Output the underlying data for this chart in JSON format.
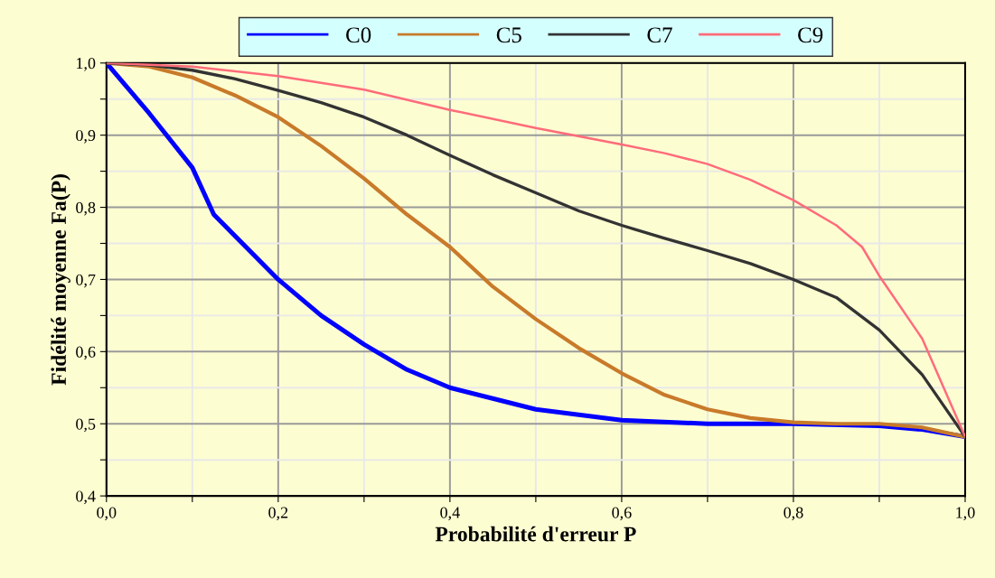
{
  "chart_data": {
    "type": "line",
    "xlabel": "Probabilité d'erreur P",
    "ylabel": "Fidélité moyenne Fa(P)",
    "xlim": [
      0,
      1
    ],
    "ylim": [
      0.4,
      1.0
    ],
    "xticks": [
      {
        "value": 0,
        "label": "0,0"
      },
      {
        "value": 0.1,
        "label": null
      },
      {
        "value": 0.2,
        "label": "0,2"
      },
      {
        "value": 0.3,
        "label": null
      },
      {
        "value": 0.4,
        "label": "0,4"
      },
      {
        "value": 0.5,
        "label": null
      },
      {
        "value": 0.6,
        "label": "0,6"
      },
      {
        "value": 0.7,
        "label": null
      },
      {
        "value": 0.8,
        "label": "0,8"
      },
      {
        "value": 0.9,
        "label": null
      },
      {
        "value": 1.0,
        "label": "1,0"
      }
    ],
    "yticks": [
      {
        "value": 0.4,
        "label": "0,4"
      },
      {
        "value": 0.45,
        "label": null
      },
      {
        "value": 0.5,
        "label": "0,5"
      },
      {
        "value": 0.55,
        "label": null
      },
      {
        "value": 0.6,
        "label": "0,6"
      },
      {
        "value": 0.65,
        "label": null
      },
      {
        "value": 0.7,
        "label": "0,7"
      },
      {
        "value": 0.75,
        "label": null
      },
      {
        "value": 0.8,
        "label": "0,8"
      },
      {
        "value": 0.85,
        "label": null
      },
      {
        "value": 0.9,
        "label": "0,9"
      },
      {
        "value": 0.95,
        "label": null
      },
      {
        "value": 1.0,
        "label": "1,0"
      }
    ],
    "grid": true,
    "legend": "top",
    "marker": "none",
    "line_style": "solid",
    "series": [
      {
        "name": "C0",
        "color": "#0000ff",
        "x": [
          0,
          0.05,
          0.1,
          0.125,
          0.2,
          0.25,
          0.3,
          0.35,
          0.4,
          0.5,
          0.6,
          0.7,
          0.8,
          0.9,
          0.95,
          1.0
        ],
        "values": [
          1.0,
          0.93,
          0.855,
          0.79,
          0.7,
          0.65,
          0.61,
          0.575,
          0.55,
          0.52,
          0.505,
          0.5,
          0.5,
          0.497,
          0.492,
          0.482
        ]
      },
      {
        "name": "C5",
        "color": "#c87a2a",
        "x": [
          0,
          0.05,
          0.1,
          0.15,
          0.2,
          0.25,
          0.3,
          0.35,
          0.4,
          0.45,
          0.5,
          0.55,
          0.6,
          0.65,
          0.7,
          0.75,
          0.8,
          0.85,
          0.9,
          0.95,
          1.0
        ],
        "values": [
          1.0,
          0.995,
          0.98,
          0.955,
          0.925,
          0.885,
          0.84,
          0.79,
          0.745,
          0.69,
          0.645,
          0.605,
          0.57,
          0.54,
          0.52,
          0.508,
          0.502,
          0.5,
          0.5,
          0.495,
          0.482
        ]
      },
      {
        "name": "C7",
        "color": "#333333",
        "x": [
          0,
          0.05,
          0.1,
          0.15,
          0.2,
          0.25,
          0.3,
          0.35,
          0.4,
          0.45,
          0.5,
          0.55,
          0.6,
          0.65,
          0.7,
          0.75,
          0.8,
          0.85,
          0.9,
          0.95,
          1.0
        ],
        "values": [
          1.0,
          0.997,
          0.99,
          0.978,
          0.962,
          0.945,
          0.925,
          0.9,
          0.872,
          0.845,
          0.82,
          0.795,
          0.775,
          0.757,
          0.74,
          0.722,
          0.7,
          0.675,
          0.63,
          0.568,
          0.482
        ]
      },
      {
        "name": "C9",
        "color": "#ff6b7a",
        "x": [
          0,
          0.1,
          0.2,
          0.3,
          0.4,
          0.5,
          0.6,
          0.65,
          0.7,
          0.75,
          0.8,
          0.85,
          0.88,
          0.9,
          0.95,
          1.0
        ],
        "values": [
          1.0,
          0.995,
          0.982,
          0.963,
          0.935,
          0.91,
          0.887,
          0.875,
          0.86,
          0.838,
          0.81,
          0.775,
          0.745,
          0.705,
          0.618,
          0.482
        ]
      }
    ]
  }
}
